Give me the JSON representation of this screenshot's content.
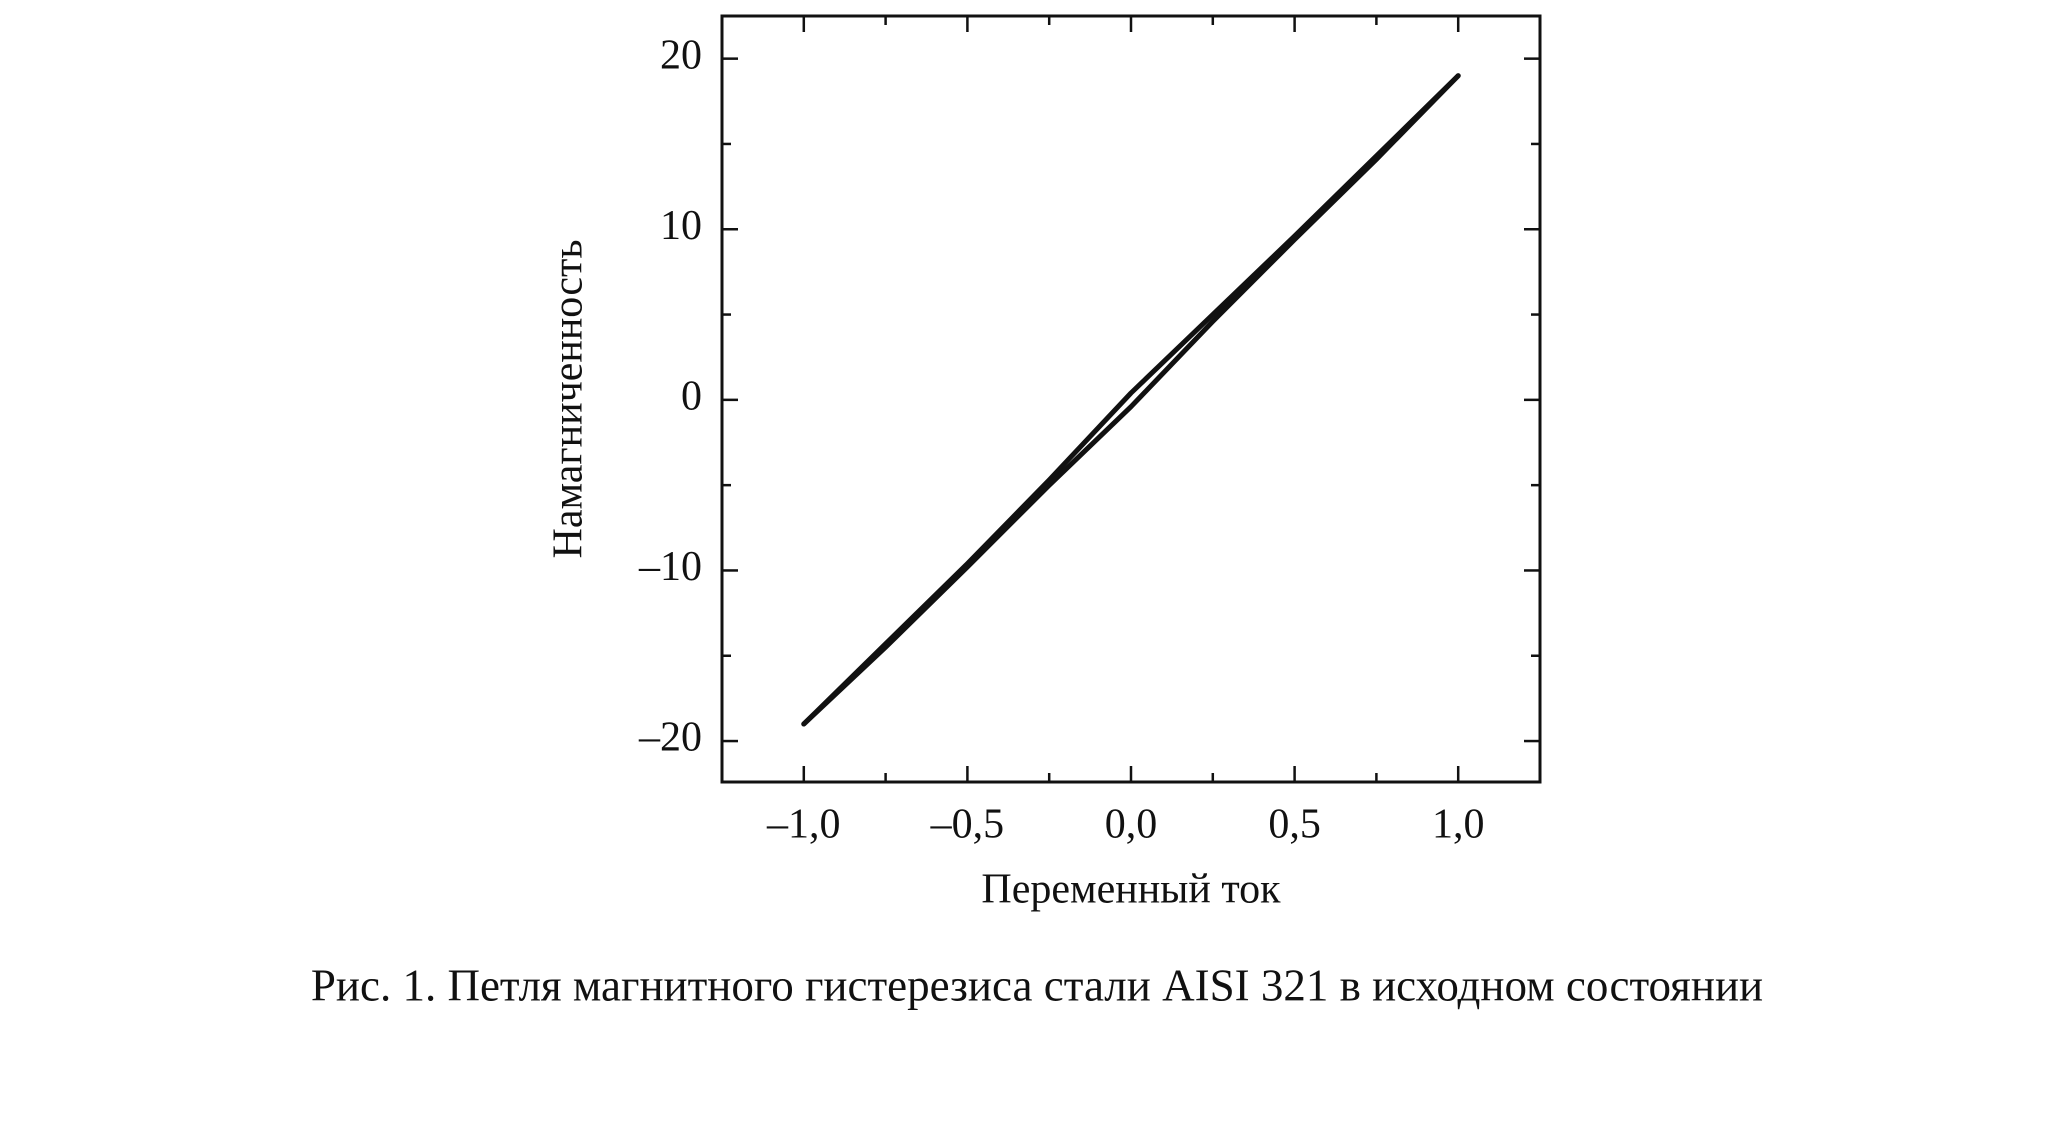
{
  "chart_data": {
    "type": "line",
    "xlabel": "Переменный ток",
    "ylabel": "Намагниченность",
    "caption": "Рис. 1. Петля магнитного гистерезиса стали AISI 321 в исходном состоянии",
    "x": [
      -1,
      -0.75,
      -0.5,
      -0.25,
      0,
      0.25,
      0.5,
      0.75,
      1
    ],
    "series": [
      {
        "color": "#111111",
        "values": [
          -19,
          -14.3,
          -9.6,
          -4.7,
          0.4,
          5,
          9.6,
          14.3,
          19
        ]
      },
      {
        "color": "#111111",
        "values": [
          -19,
          -14.5,
          -9.8,
          -5,
          -0.4,
          4.6,
          9.4,
          14.1,
          19
        ]
      }
    ],
    "xlim": [
      -1.25,
      1.25
    ],
    "ylim": [
      -22.4,
      22.5
    ],
    "xticks": [
      {
        "value": -1,
        "label": "–1,0"
      },
      {
        "value": -0.5,
        "label": "–0,5"
      },
      {
        "value": 0,
        "label": "0,0"
      },
      {
        "value": 0.5,
        "label": "0,5"
      },
      {
        "value": 1,
        "label": "1,0"
      }
    ],
    "yticks": [
      {
        "value": -20,
        "label": "–20"
      },
      {
        "value": -10,
        "label": "–10"
      },
      0,
      10,
      20
    ],
    "xminorticks": [
      -0.75,
      -0.25,
      0.25,
      0.75
    ],
    "yminorticks": [
      -15,
      -5,
      5,
      15
    ]
  }
}
